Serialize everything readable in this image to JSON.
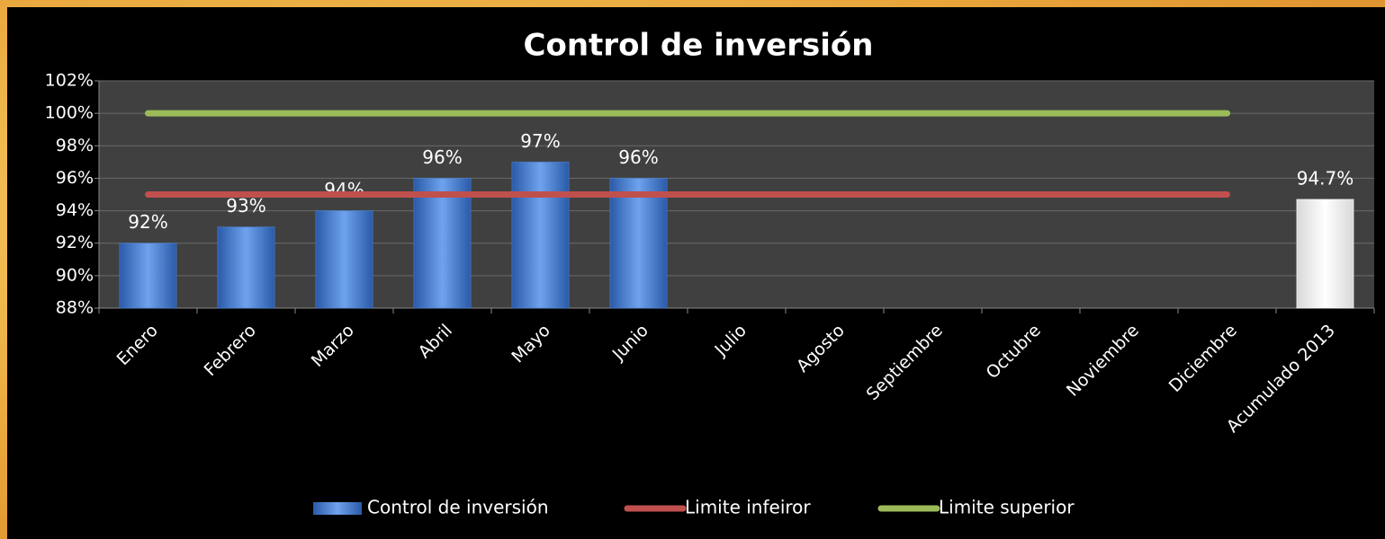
{
  "chart_data": {
    "type": "bar",
    "title": "Control de inversión",
    "categories": [
      "Enero",
      "Febrero",
      "Marzo",
      "Abril",
      "Mayo",
      "Junio",
      "Julio",
      "Agosto",
      "Septiembre",
      "Octubre",
      "Noviembre",
      "Diciembre",
      "Acumulado 2013"
    ],
    "series": [
      {
        "name": "Control de inversión",
        "type": "bar",
        "color": "#4a83d4",
        "bar_colors": [
          "#4a83d4",
          "#4a83d4",
          "#4a83d4",
          "#4a83d4",
          "#4a83d4",
          "#4a83d4",
          "#4a83d4",
          "#4a83d4",
          "#4a83d4",
          "#4a83d4",
          "#4a83d4",
          "#4a83d4",
          "#ffffff"
        ],
        "values": [
          92,
          93,
          94,
          96,
          97,
          96,
          null,
          null,
          null,
          null,
          null,
          null,
          94.7
        ],
        "value_labels": [
          "92%",
          "93%",
          "94%",
          "96%",
          "97%",
          "96%",
          null,
          null,
          null,
          null,
          null,
          null,
          "94.7%"
        ]
      },
      {
        "name": "Limite infeiror",
        "type": "line",
        "color": "#c0504d",
        "values": [
          95,
          95,
          95,
          95,
          95,
          95,
          95,
          95,
          95,
          95,
          95,
          95,
          null
        ]
      },
      {
        "name": "Limite superior",
        "type": "line",
        "color": "#9bbb59",
        "values": [
          100,
          100,
          100,
          100,
          100,
          100,
          100,
          100,
          100,
          100,
          100,
          100,
          null
        ]
      }
    ],
    "ylim": [
      88,
      102
    ],
    "yticks": [
      {
        "value": 88,
        "label": "88%"
      },
      {
        "value": 90,
        "label": "90%"
      },
      {
        "value": 92,
        "label": "92%"
      },
      {
        "value": 94,
        "label": "94%"
      },
      {
        "value": 96,
        "label": "96%"
      },
      {
        "value": 98,
        "label": "98%"
      },
      {
        "value": 100,
        "label": "100%"
      },
      {
        "value": 102,
        "label": "102%"
      }
    ],
    "grid": true,
    "legend": "bottom"
  }
}
